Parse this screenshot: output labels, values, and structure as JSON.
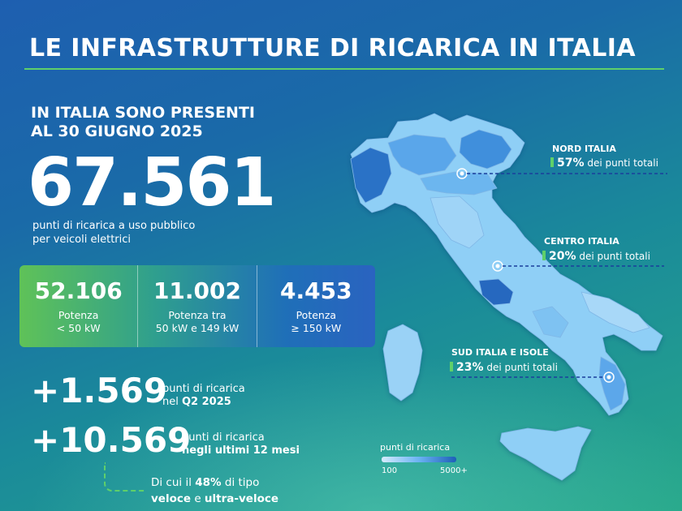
{
  "title": "LE INFRASTRUTTURE DI RICARICA IN ITALIA",
  "intro": {
    "line1": "IN ITALIA SONO PRESENTI",
    "line2": "AL 30 GIUGNO 2025"
  },
  "total": {
    "value": "67.561",
    "desc1": "punti di ricarica a uso pubblico",
    "desc2": "per veicoli elettrici"
  },
  "stats": [
    {
      "value": "52.106",
      "label1": "Potenza",
      "label2": "< 50 kW"
    },
    {
      "value": "11.002",
      "label1": "Potenza tra",
      "label2": "50 kW e 149 kW"
    },
    {
      "value": "4.453",
      "label1": "Potenza",
      "label2": "≥ 150 kW"
    }
  ],
  "increments": [
    {
      "value": "+1.569",
      "text1": "punti di ricarica",
      "text2_pre": "nel ",
      "text2_bold": "Q2 2025"
    },
    {
      "value": "+10.569",
      "text1": "punti di ricarica",
      "text2_pre": "",
      "text2_bold": "negli ultimi 12 mesi"
    }
  ],
  "note": {
    "pre": "Di cui il ",
    "pct": "48%",
    "mid": " di tipo",
    "b1": "veloce",
    "and": " e ",
    "b2": "ultra-veloce"
  },
  "regions": [
    {
      "name": "NORD ITALIA",
      "pct": "57%",
      "text": " dei punti totali"
    },
    {
      "name": "CENTRO ITALIA",
      "pct": "20%",
      "text": " dei punti totali"
    },
    {
      "name": "SUD ITALIA E ISOLE",
      "pct": "23%",
      "text": " dei punti totali"
    }
  ],
  "legend": {
    "title": "punti di ricarica",
    "min": "100",
    "max": "5000+"
  },
  "colors": {
    "accent_green": "#5fd06a",
    "map_light": "#8ecdf5",
    "map_dark": "#1d5fb8"
  }
}
